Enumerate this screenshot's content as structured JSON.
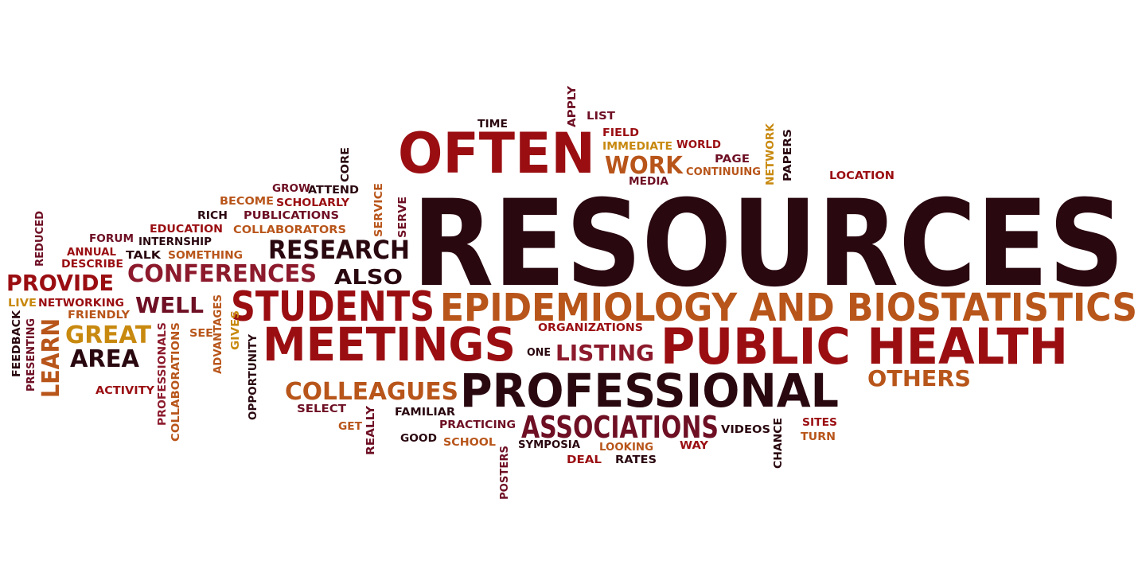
{
  "palette": {
    "dark": "#2a0810",
    "maroon": "#6e0f24",
    "red": "#9a0e12",
    "crimson": "#8c1a2c",
    "orange": "#b8551a",
    "gold": "#c8890f"
  },
  "words": [
    {
      "text": "RESOURCES",
      "color": "dark"
    },
    {
      "text": "OFTEN",
      "color": "red"
    },
    {
      "text": "EPIDEMIOLOGY AND BIOSTATISTICS",
      "color": "orange"
    },
    {
      "text": "PUBLIC HEALTH",
      "color": "red"
    },
    {
      "text": "PROFESSIONAL",
      "color": "dark"
    },
    {
      "text": "MEETINGS",
      "color": "red"
    },
    {
      "text": "STUDENTS",
      "color": "red"
    },
    {
      "text": "ASSOCIATIONS",
      "color": "maroon"
    },
    {
      "text": "RESEARCH",
      "color": "dark"
    },
    {
      "text": "CONFERENCES",
      "color": "crimson"
    },
    {
      "text": "COLLEAGUES",
      "color": "orange"
    },
    {
      "text": "WORK",
      "color": "orange"
    },
    {
      "text": "PROVIDE",
      "color": "red"
    },
    {
      "text": "ALSO",
      "color": "dark"
    },
    {
      "text": "GREAT",
      "color": "gold"
    },
    {
      "text": "AREA",
      "color": "dark"
    },
    {
      "text": "WELL",
      "color": "maroon"
    },
    {
      "text": "LISTING",
      "color": "crimson"
    },
    {
      "text": "OTHERS",
      "color": "orange"
    },
    {
      "text": "LEARN",
      "color": "orange"
    },
    {
      "text": "TIME",
      "color": "dark"
    },
    {
      "text": "APPLY",
      "color": "maroon"
    },
    {
      "text": "LIST",
      "color": "maroon"
    },
    {
      "text": "FIELD",
      "color": "red"
    },
    {
      "text": "IMMEDIATE",
      "color": "gold"
    },
    {
      "text": "WORLD",
      "color": "red"
    },
    {
      "text": "PAGE",
      "color": "maroon"
    },
    {
      "text": "CONTINUING",
      "color": "orange"
    },
    {
      "text": "MEDIA",
      "color": "maroon"
    },
    {
      "text": "NETWORK",
      "color": "gold"
    },
    {
      "text": "PAPERS",
      "color": "dark"
    },
    {
      "text": "LOCATION",
      "color": "red"
    },
    {
      "text": "CORE",
      "color": "dark"
    },
    {
      "text": "GROW",
      "color": "maroon"
    },
    {
      "text": "ATTEND",
      "color": "dark"
    },
    {
      "text": "BECOME",
      "color": "orange"
    },
    {
      "text": "SCHOLARLY",
      "color": "red"
    },
    {
      "text": "SERVICE",
      "color": "orange"
    },
    {
      "text": "SERVE",
      "color": "maroon"
    },
    {
      "text": "RICH",
      "color": "dark"
    },
    {
      "text": "PUBLICATIONS",
      "color": "maroon"
    },
    {
      "text": "EDUCATION",
      "color": "red"
    },
    {
      "text": "COLLABORATORS",
      "color": "orange"
    },
    {
      "text": "REDUCED",
      "color": "maroon"
    },
    {
      "text": "FORUM",
      "color": "maroon"
    },
    {
      "text": "INTERNSHIP",
      "color": "dark"
    },
    {
      "text": "ANNUAL",
      "color": "red"
    },
    {
      "text": "TALK",
      "color": "dark"
    },
    {
      "text": "SOMETHING",
      "color": "orange"
    },
    {
      "text": "DESCRIBE",
      "color": "red"
    },
    {
      "text": "LIVE",
      "color": "gold"
    },
    {
      "text": "NETWORKING",
      "color": "red"
    },
    {
      "text": "FRIENDLY",
      "color": "orange"
    },
    {
      "text": "FEEDBACK",
      "color": "dark"
    },
    {
      "text": "PRESENTING",
      "color": "maroon"
    },
    {
      "text": "PROFESSIONALS",
      "color": "crimson"
    },
    {
      "text": "COLLABORATIONS",
      "color": "orange"
    },
    {
      "text": "SEE",
      "color": "orange"
    },
    {
      "text": "ADVANTAGES",
      "color": "orange"
    },
    {
      "text": "GIVES",
      "color": "gold"
    },
    {
      "text": "OPPORTUNITY",
      "color": "dark"
    },
    {
      "text": "ACTIVITY",
      "color": "red"
    },
    {
      "text": "ORGANIZATIONS",
      "color": "red"
    },
    {
      "text": "ONE",
      "color": "dark"
    },
    {
      "text": "SELECT",
      "color": "maroon"
    },
    {
      "text": "FAMILIAR",
      "color": "dark"
    },
    {
      "text": "GET",
      "color": "orange"
    },
    {
      "text": "REALLY",
      "color": "maroon"
    },
    {
      "text": "PRACTICING",
      "color": "maroon"
    },
    {
      "text": "GOOD",
      "color": "dark"
    },
    {
      "text": "SCHOOL",
      "color": "orange"
    },
    {
      "text": "SYMPOSIA",
      "color": "dark"
    },
    {
      "text": "LOOKING",
      "color": "orange"
    },
    {
      "text": "WAY",
      "color": "red"
    },
    {
      "text": "DEAL",
      "color": "red"
    },
    {
      "text": "RATES",
      "color": "dark"
    },
    {
      "text": "VIDEOS",
      "color": "dark"
    },
    {
      "text": "CHANCE",
      "color": "dark"
    },
    {
      "text": "SITES",
      "color": "red"
    },
    {
      "text": "TURN",
      "color": "orange"
    },
    {
      "text": "POSTERS",
      "color": "maroon"
    }
  ]
}
